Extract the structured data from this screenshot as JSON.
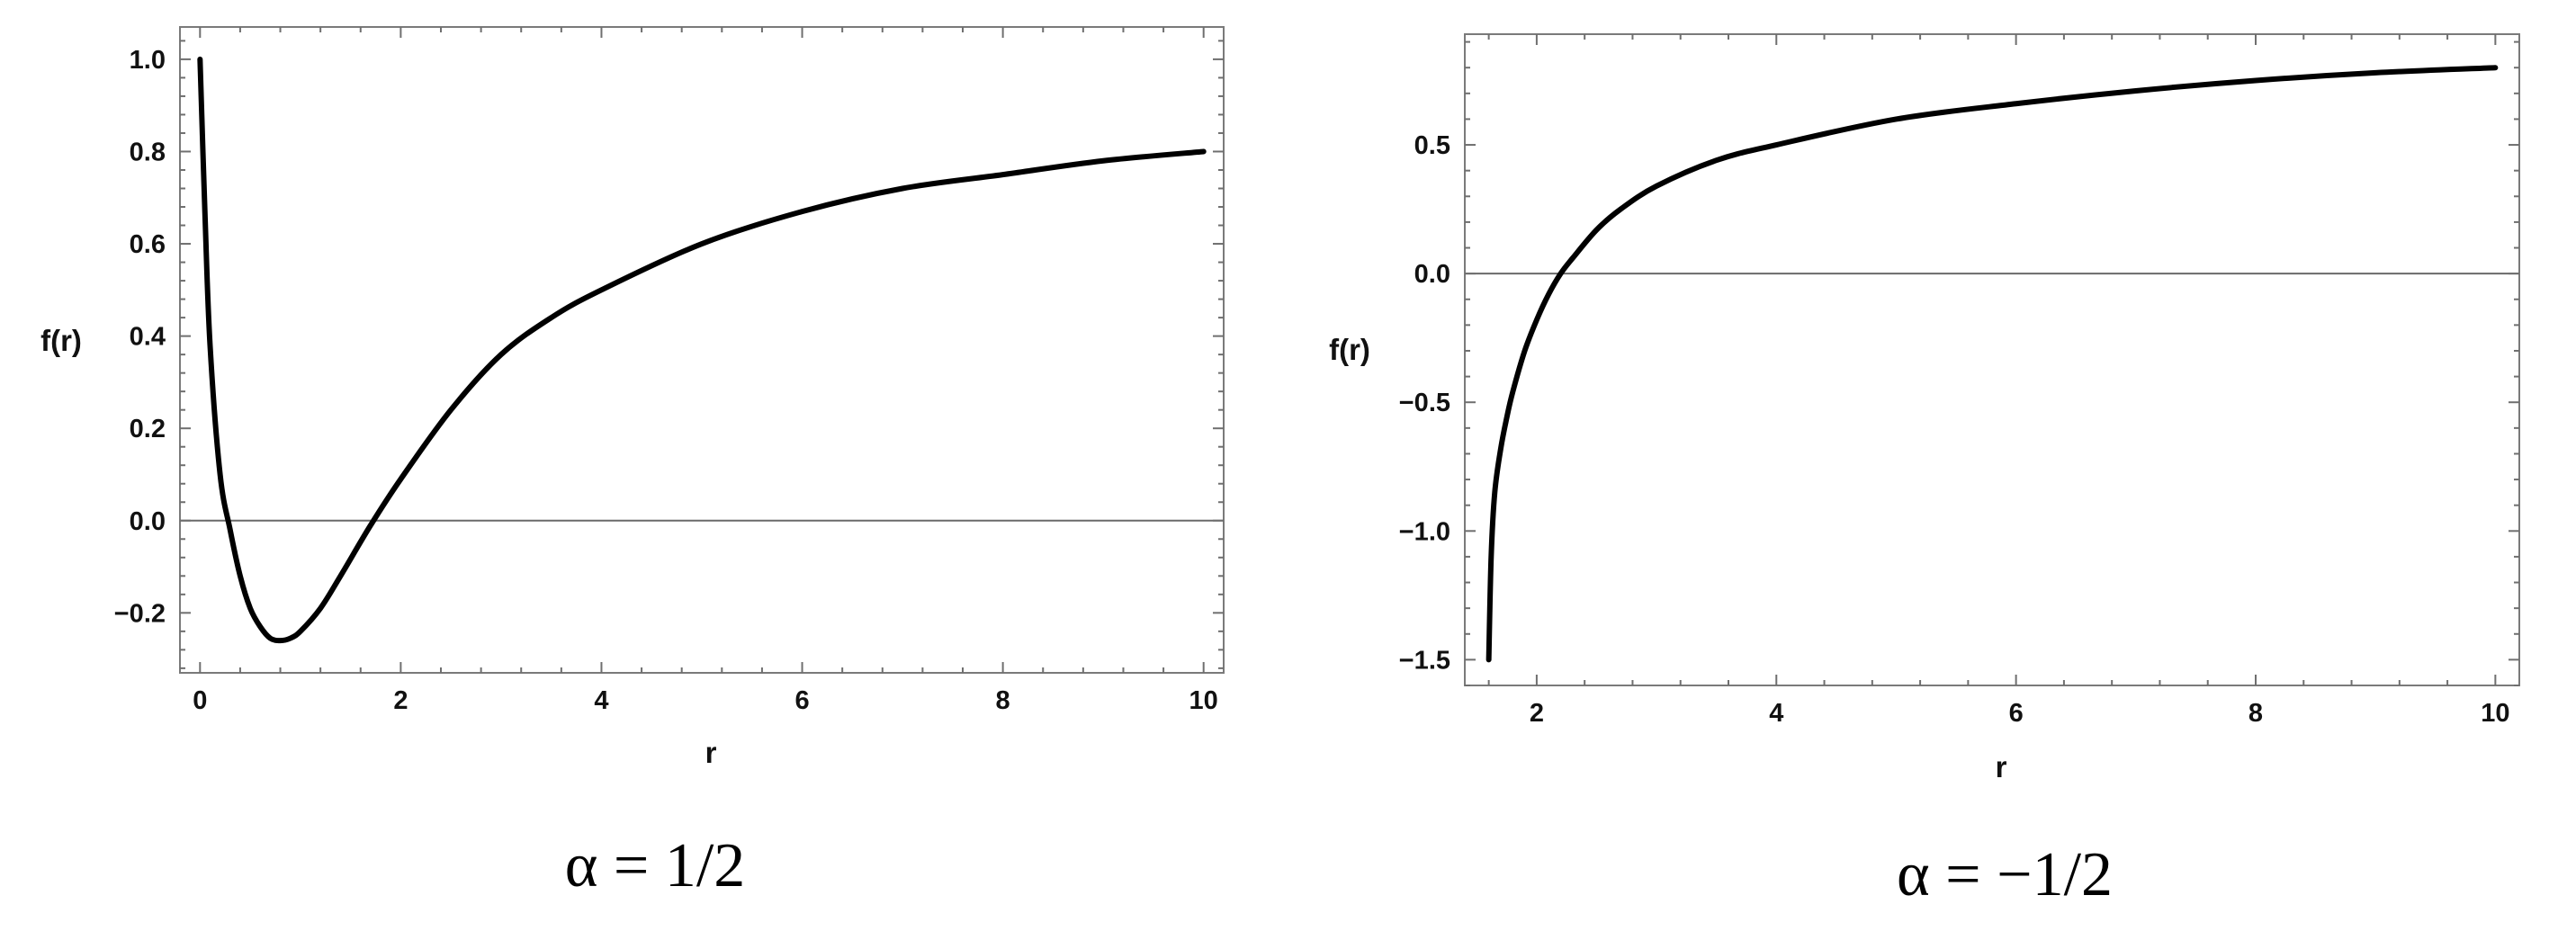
{
  "chart_data": [
    {
      "type": "line",
      "xlabel": "r",
      "ylabel": "f(r)",
      "caption": "α = 1/2",
      "xlim": [
        -0.2,
        10.2
      ],
      "ylim": [
        -0.33,
        1.07
      ],
      "x_ticks": [
        0,
        2,
        4,
        6,
        8,
        10
      ],
      "x_tick_labels": [
        "0",
        "2",
        "4",
        "6",
        "8",
        "10"
      ],
      "y_ticks": [
        -0.2,
        0.0,
        0.2,
        0.4,
        0.6,
        0.8,
        1.0
      ],
      "y_tick_labels": [
        "−0.2",
        "0.0",
        "0.2",
        "0.4",
        "0.6",
        "0.8",
        "1.0"
      ],
      "series": [
        {
          "x": [
            0.0,
            0.05,
            0.1,
            0.2,
            0.3,
            0.4,
            0.5,
            0.6,
            0.7,
            0.8,
            0.9,
            1.0,
            1.2,
            1.4,
            1.7,
            2.0,
            2.5,
            3.0,
            3.5,
            4.0,
            5.0,
            6.0,
            7.0,
            8.0,
            9.0,
            10.0
          ],
          "y": [
            1.0,
            0.66,
            0.38,
            0.1,
            -0.02,
            -0.12,
            -0.19,
            -0.23,
            -0.255,
            -0.26,
            -0.255,
            -0.24,
            -0.19,
            -0.12,
            -0.01,
            0.09,
            0.24,
            0.36,
            0.44,
            0.5,
            0.6,
            0.67,
            0.72,
            0.75,
            0.78,
            0.8
          ]
        }
      ]
    },
    {
      "type": "line",
      "xlabel": "r",
      "ylabel": "f(r)",
      "caption": "α = −1/2",
      "xlim": [
        1.4,
        10.2
      ],
      "ylim": [
        -1.6,
        0.93
      ],
      "x_ticks": [
        2,
        4,
        6,
        8,
        10
      ],
      "x_tick_labels": [
        "2",
        "4",
        "6",
        "8",
        "10"
      ],
      "y_ticks": [
        -1.5,
        -1.0,
        -0.5,
        0.0,
        0.5
      ],
      "y_tick_labels": [
        "−1.5",
        "−1.0",
        "−0.5",
        "0.0",
        "0.5"
      ],
      "series": [
        {
          "x": [
            1.6,
            1.62,
            1.65,
            1.7,
            1.75,
            1.8,
            1.9,
            2.0,
            2.1,
            2.2,
            2.3,
            2.5,
            2.7,
            3.0,
            3.5,
            4.0,
            5.0,
            6.0,
            7.0,
            8.0,
            9.0,
            10.0
          ],
          "y": [
            -1.5,
            -1.1,
            -0.85,
            -0.68,
            -0.56,
            -0.46,
            -0.3,
            -0.18,
            -0.08,
            0.0,
            0.06,
            0.17,
            0.25,
            0.34,
            0.44,
            0.5,
            0.6,
            0.66,
            0.71,
            0.75,
            0.78,
            0.8
          ]
        }
      ]
    }
  ]
}
